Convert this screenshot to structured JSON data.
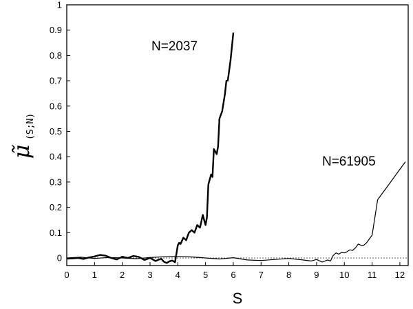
{
  "chart_data": {
    "type": "line",
    "xlabel": "S",
    "ylabel": {
      "main": "μ̃",
      "subscript": "(S;N)"
    },
    "xlim": [
      0,
      12.3
    ],
    "ylim": [
      -0.03,
      1.0
    ],
    "x_ticks": [
      0,
      1,
      2,
      3,
      4,
      5,
      6,
      7,
      8,
      9,
      10,
      11,
      12
    ],
    "y_ticks": [
      0,
      0.1,
      0.2,
      0.3,
      0.4,
      0.5,
      0.6,
      0.7,
      0.8,
      0.9,
      1
    ],
    "y_tick_labels": [
      "0",
      "0.1",
      "0.2",
      "0.3",
      "0.4",
      "0.5",
      "0.6",
      "0.7",
      "0.8",
      "0.9",
      "1"
    ],
    "reference_line": {
      "y": 0,
      "style": "dotted"
    },
    "grid": false,
    "series": [
      {
        "name": "N=2037",
        "stroke_width": 2.4,
        "x": [
          0,
          0.2,
          0.4,
          0.6,
          0.8,
          1.0,
          1.2,
          1.4,
          1.6,
          1.8,
          2.0,
          2.2,
          2.4,
          2.6,
          2.8,
          3.0,
          3.2,
          3.4,
          3.5,
          3.6,
          3.7,
          3.8,
          3.9,
          4.0,
          4.05,
          4.1,
          4.2,
          4.3,
          4.4,
          4.5,
          4.6,
          4.7,
          4.8,
          4.9,
          5.0,
          5.05,
          5.1,
          5.2,
          5.25,
          5.3,
          5.4,
          5.45,
          5.5,
          5.6,
          5.7,
          5.75,
          5.8,
          5.9,
          6.0
        ],
        "y": [
          -0.003,
          -0.002,
          0.0,
          -0.004,
          0.002,
          0.006,
          0.012,
          0.009,
          0.0,
          -0.006,
          0.005,
          0.0,
          0.008,
          0.004,
          -0.008,
          0.0,
          -0.012,
          -0.003,
          -0.015,
          -0.02,
          -0.013,
          -0.01,
          -0.017,
          0.05,
          0.06,
          0.055,
          0.08,
          0.07,
          0.1,
          0.11,
          0.1,
          0.13,
          0.12,
          0.17,
          0.13,
          0.16,
          0.29,
          0.33,
          0.32,
          0.43,
          0.41,
          0.44,
          0.55,
          0.58,
          0.65,
          0.7,
          0.7,
          0.78,
          0.89
        ],
        "label_position": {
          "x": 3.05,
          "y": 0.82
        }
      },
      {
        "name": "N=61905",
        "stroke_width": 1.2,
        "x": [
          0,
          0.5,
          1.0,
          1.5,
          2.0,
          2.5,
          3.0,
          3.5,
          4.0,
          4.5,
          5.0,
          5.5,
          6.0,
          6.5,
          7.0,
          7.5,
          8.0,
          8.5,
          8.8,
          9.0,
          9.2,
          9.4,
          9.5,
          9.6,
          9.7,
          9.8,
          9.9,
          10.0,
          10.1,
          10.2,
          10.3,
          10.4,
          10.5,
          10.6,
          10.7,
          10.8,
          10.9,
          11.0,
          11.2,
          11.4,
          11.6,
          11.8,
          12.0,
          12.2
        ],
        "y": [
          0.0,
          0.003,
          -0.002,
          0.002,
          0.0,
          -0.003,
          0.002,
          0.005,
          0.006,
          0.004,
          0.0,
          -0.004,
          0.001,
          -0.008,
          -0.01,
          -0.006,
          -0.002,
          -0.008,
          -0.012,
          -0.006,
          -0.016,
          -0.008,
          -0.012,
          0.01,
          0.02,
          0.015,
          0.022,
          0.02,
          0.025,
          0.032,
          0.03,
          0.04,
          0.055,
          0.05,
          0.05,
          0.06,
          0.075,
          0.09,
          0.23,
          0.26,
          0.29,
          0.32,
          0.35,
          0.38
        ],
        "label_position": {
          "x": 9.2,
          "y": 0.365
        }
      }
    ]
  }
}
